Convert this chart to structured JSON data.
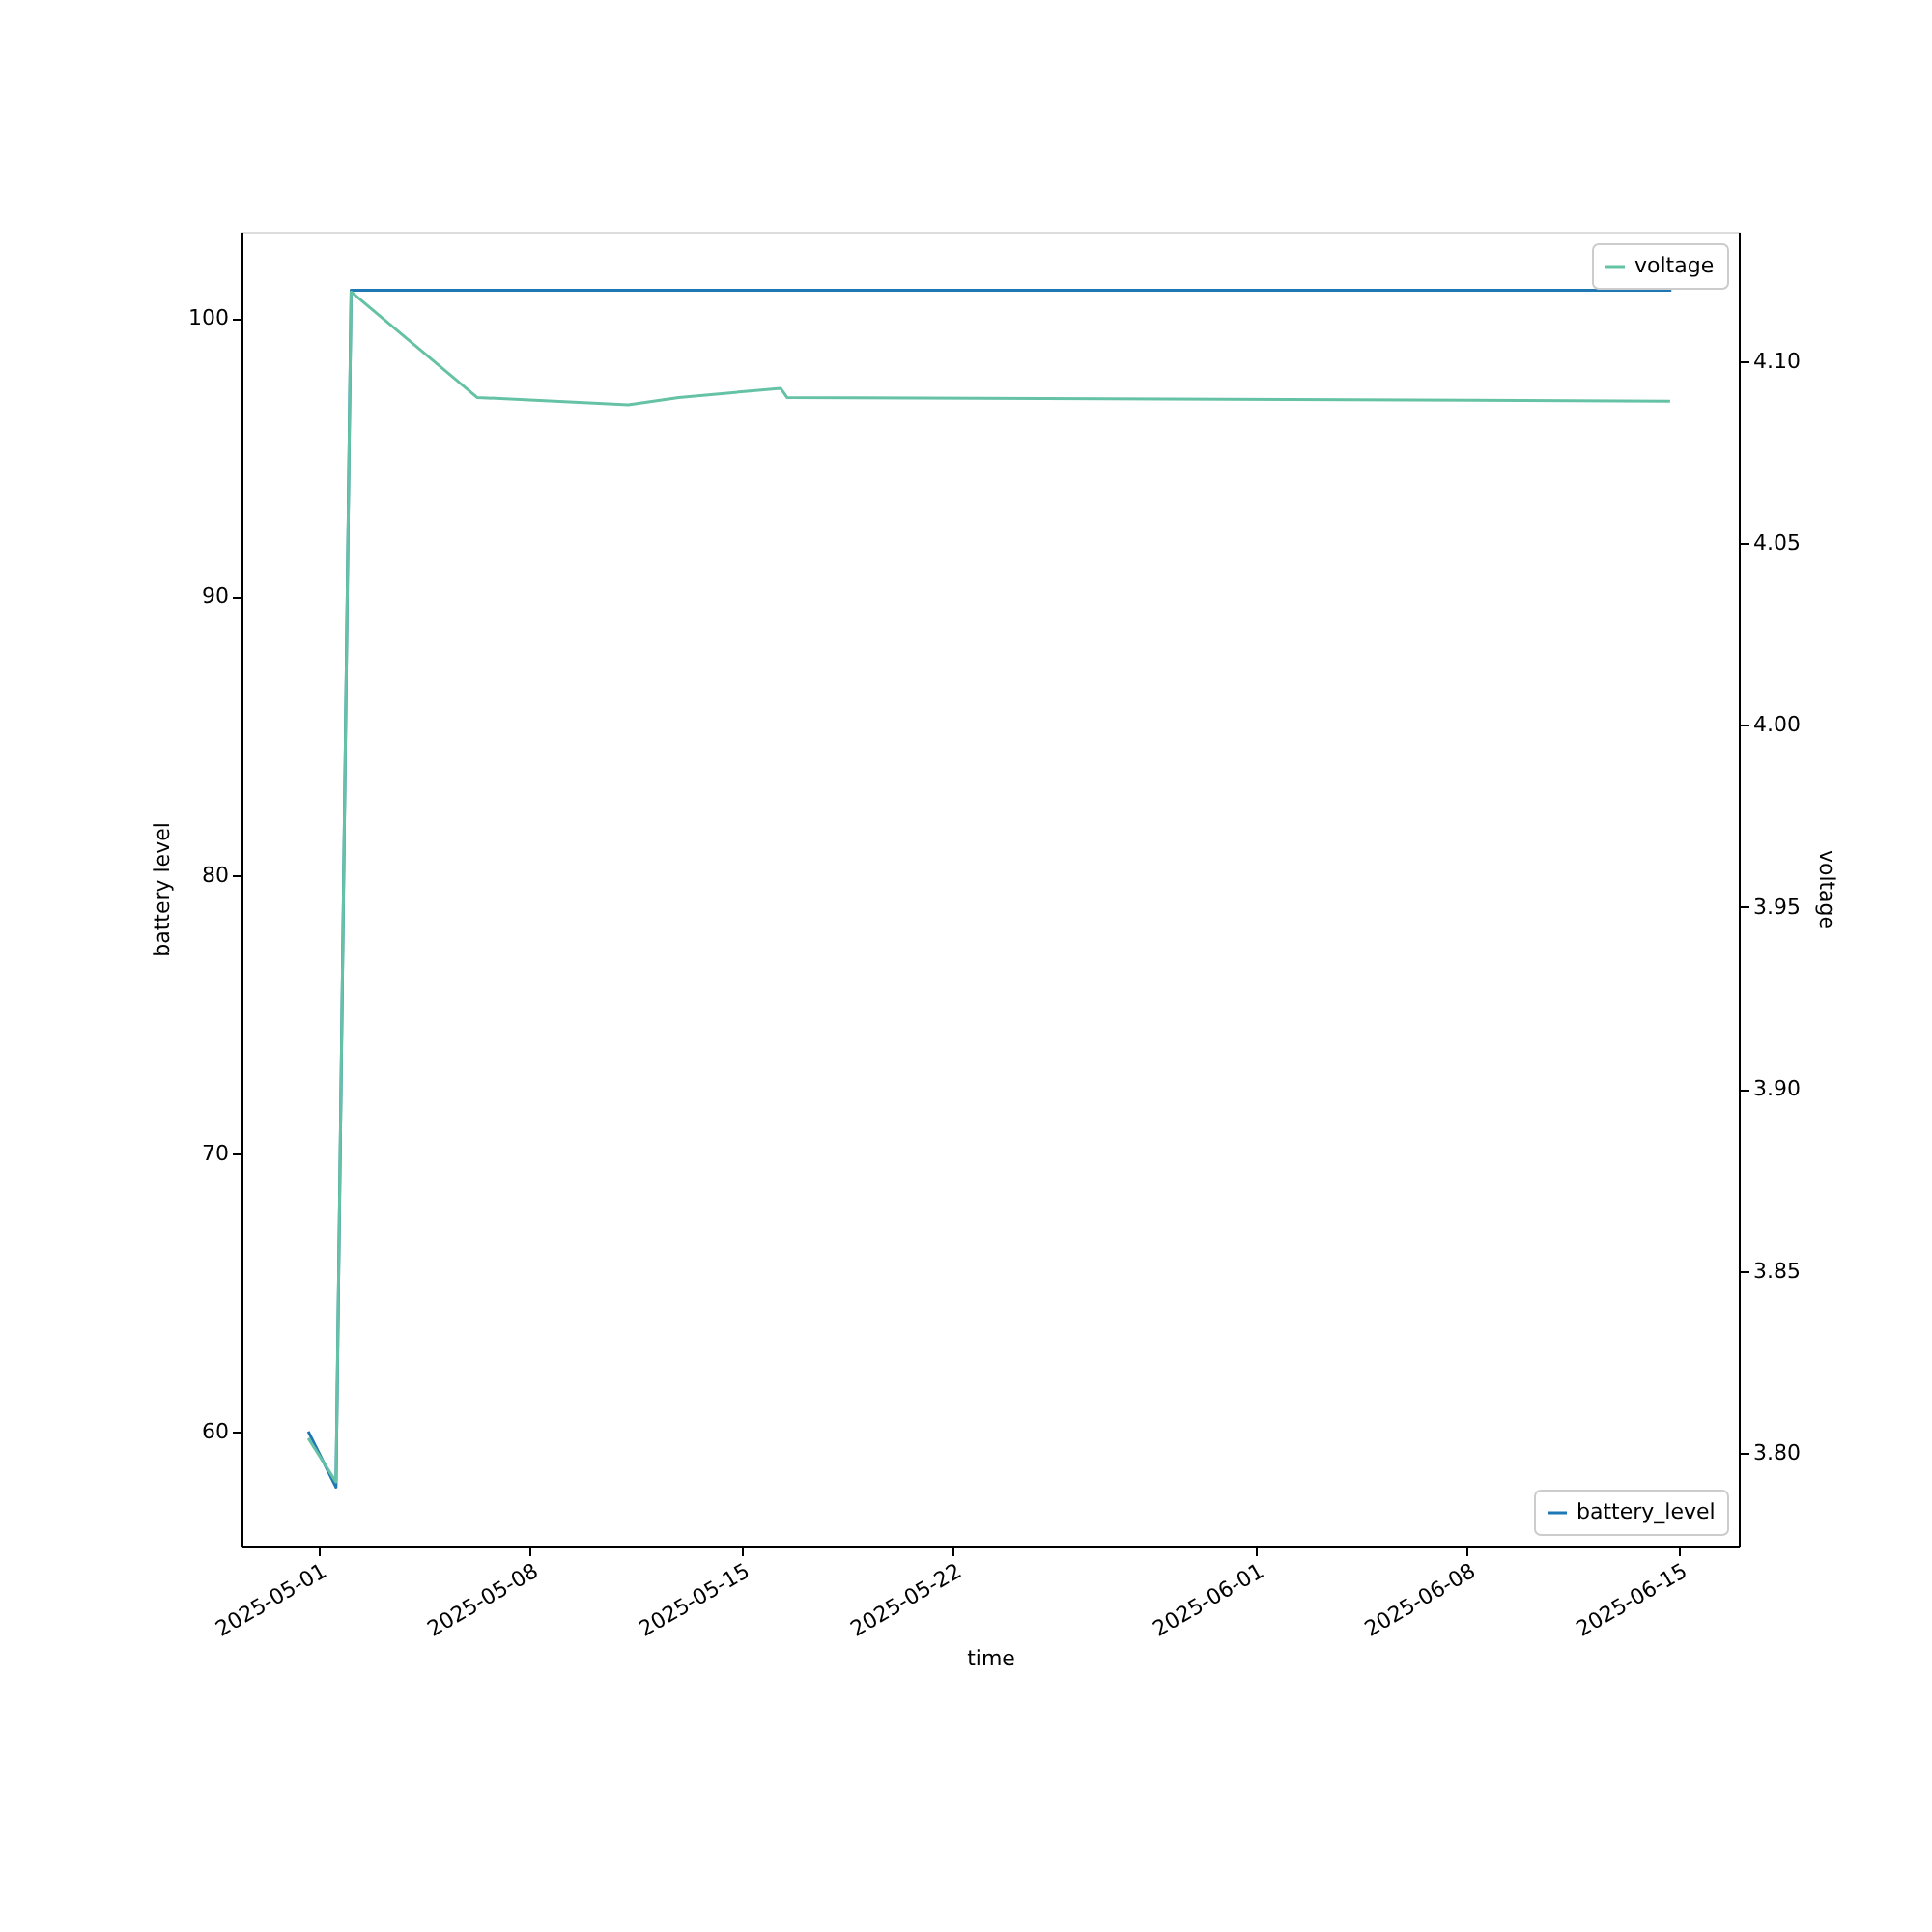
{
  "chart_data": {
    "type": "line",
    "xlabel": "time",
    "ylabel": "battery level",
    "y2label": "voltage",
    "xlim": [
      "2025-04-28T11:00",
      "2025-06-16T23:30"
    ],
    "xticks": [
      {
        "value": "2025-05-01",
        "label": "2025-05-01"
      },
      {
        "value": "2025-05-08",
        "label": "2025-05-08"
      },
      {
        "value": "2025-05-15",
        "label": "2025-05-15"
      },
      {
        "value": "2025-05-22",
        "label": "2025-05-22"
      },
      {
        "value": "2025-06-01",
        "label": "2025-06-01"
      },
      {
        "value": "2025-06-08",
        "label": "2025-06-08"
      },
      {
        "value": "2025-06-15",
        "label": "2025-06-15"
      }
    ],
    "ylim": [
      55.9,
      103.1
    ],
    "yticks": [
      60,
      70,
      80,
      90,
      100
    ],
    "y2lim": [
      3.7745,
      4.1355
    ],
    "y2ticks": [
      {
        "value": 3.8,
        "label": "3.80"
      },
      {
        "value": 3.85,
        "label": "3.85"
      },
      {
        "value": 3.9,
        "label": "3.90"
      },
      {
        "value": 3.95,
        "label": "3.95"
      },
      {
        "value": 4.0,
        "label": "4.00"
      },
      {
        "value": 4.05,
        "label": "4.05"
      },
      {
        "value": 4.1,
        "label": "4.10"
      }
    ],
    "grid": false,
    "marker": "none",
    "line_style": "solid",
    "legend": "right",
    "series": [
      {
        "name": "battery_level",
        "color": "#1f77b4",
        "x": [
          "2025-04-30T16:00",
          "2025-05-01T14:00",
          "2025-05-02T02:00",
          "2025-06-14T18:00"
        ],
        "values": [
          60,
          58,
          101,
          101
        ]
      },
      {
        "name": "voltage",
        "color": "#66c2a5",
        "axis": "y2",
        "x": [
          "2025-04-30T16:00",
          "2025-05-01T14:00",
          "2025-05-02T02:00",
          "2025-05-06T06:00",
          "2025-05-11T06:00",
          "2025-05-12T22:00",
          "2025-05-16T07:00",
          "2025-05-16T12:00",
          "2025-06-14T17:00"
        ],
        "values": [
          3.804,
          3.792,
          4.119,
          4.09,
          4.088,
          4.09,
          4.0925,
          4.09,
          4.089
        ]
      }
    ]
  }
}
